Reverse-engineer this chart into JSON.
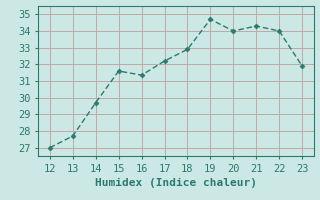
{
  "x": [
    12,
    13,
    14,
    15,
    16,
    17,
    18,
    19,
    20,
    21,
    22,
    23
  ],
  "y": [
    27.0,
    27.7,
    29.7,
    31.6,
    31.35,
    32.2,
    32.9,
    34.7,
    34.0,
    34.3,
    34.0,
    31.9
  ],
  "line_color": "#2a7a70",
  "marker": "D",
  "marker_size": 2.5,
  "background_color": "#cce8e4",
  "grid_color": "#c0a8a8",
  "xlabel": "Humidex (Indice chaleur)",
  "xlim": [
    11.5,
    23.5
  ],
  "ylim": [
    26.5,
    35.5
  ],
  "xticks": [
    12,
    13,
    14,
    15,
    16,
    17,
    18,
    19,
    20,
    21,
    22,
    23
  ],
  "yticks": [
    27,
    28,
    29,
    30,
    31,
    32,
    33,
    34,
    35
  ],
  "tick_fontsize": 7.5,
  "xlabel_fontsize": 8,
  "tick_color": "#2a7a70",
  "spine_color": "#2a7a70"
}
